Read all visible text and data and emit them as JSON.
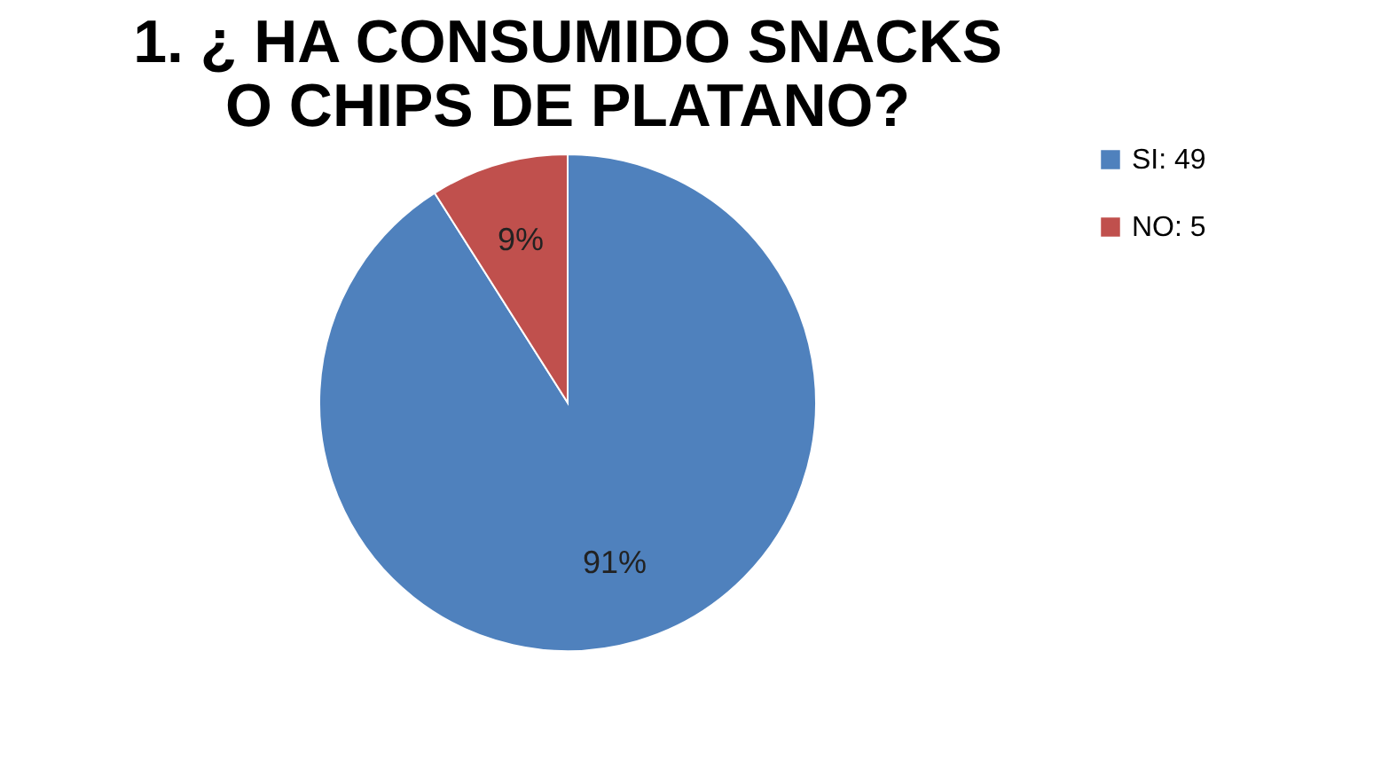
{
  "chart_data": {
    "type": "pie",
    "title": "1. ¿ HA CONSUMIDO SNACKS O CHIPS DE PLATANO?",
    "categories": [
      "SI: 49",
      "NO: 5"
    ],
    "values": [
      91,
      9
    ],
    "colors": [
      "#4f81bd",
      "#c0504d"
    ],
    "value_labels": [
      "91%",
      "9%"
    ],
    "legend": "right"
  }
}
